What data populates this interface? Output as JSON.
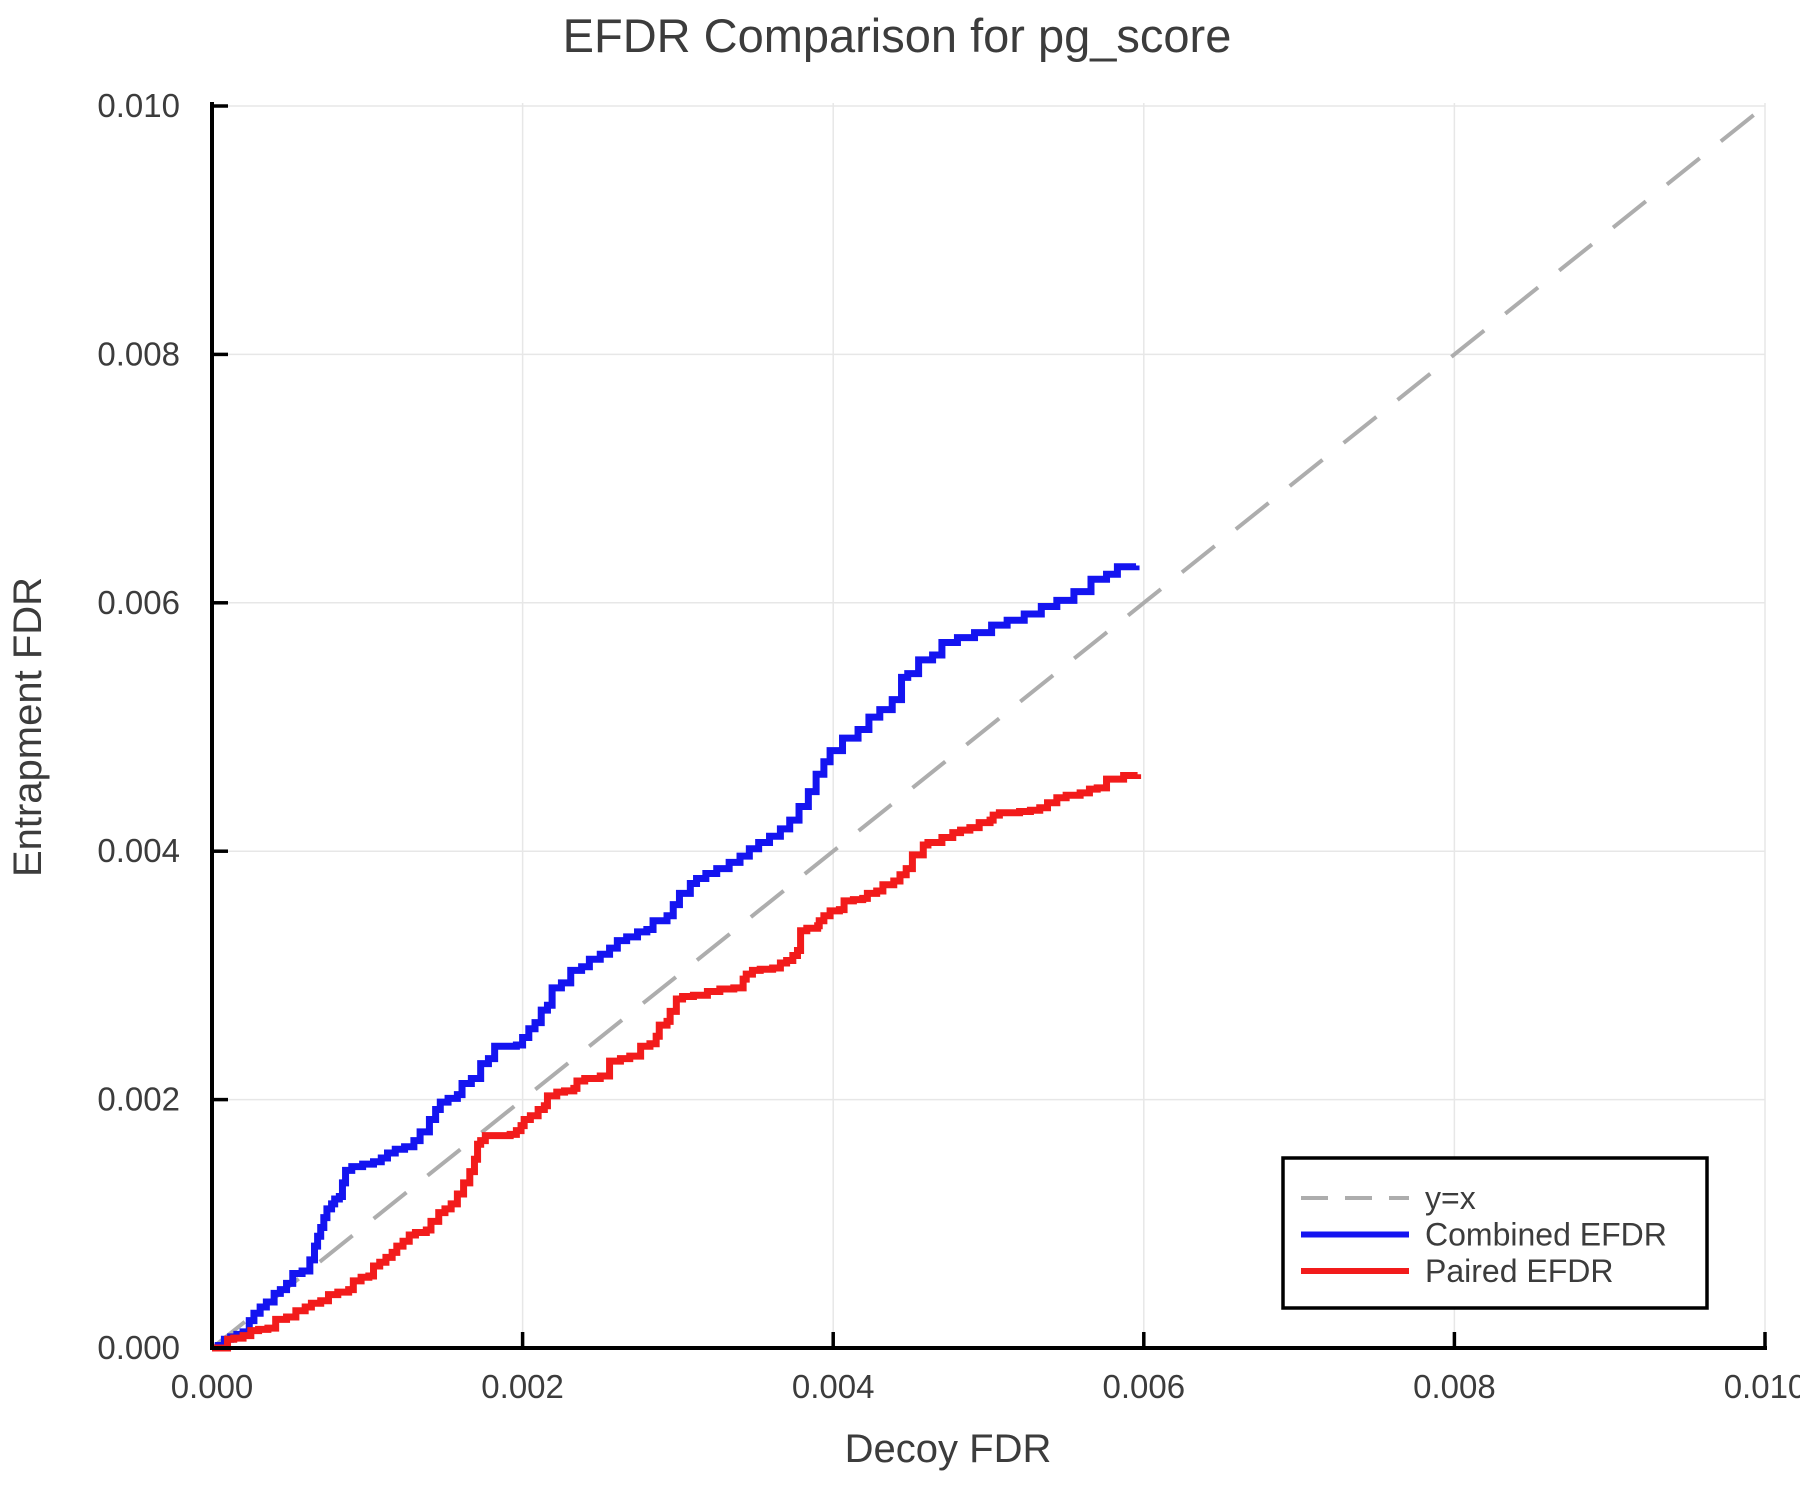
{
  "chart_data": {
    "type": "line",
    "title": "EFDR Comparison for pg_score",
    "xlabel": "Decoy FDR",
    "ylabel": "Entrapment FDR",
    "xlim": [
      0.0,
      0.01
    ],
    "ylim": [
      0.0,
      0.01
    ],
    "x_tick_labels": [
      "0.000",
      "0.002",
      "0.004",
      "0.006",
      "0.008",
      "0.010"
    ],
    "y_tick_labels": [
      "0.000",
      "0.002",
      "0.004",
      "0.006",
      "0.008",
      "0.010"
    ],
    "grid": true,
    "grid_color": "#e7e7e7",
    "spine_color": "#000000",
    "text_color": "#3c3c3c",
    "legend_position": "lower right",
    "reference_line": {
      "label": "y=x",
      "style": "dashed",
      "color": "#adadad",
      "from": [
        0.0,
        0.0
      ],
      "to": [
        0.01,
        0.01
      ]
    },
    "series": [
      {
        "name": "Combined EFDR",
        "color": "#1414f0",
        "step": true,
        "points": [
          [
            0.0,
            0.0
          ],
          [
            4e-05,
            2e-05
          ],
          [
            8e-05,
            7e-05
          ],
          [
            0.00012,
            9e-05
          ],
          [
            0.00016,
            0.00011
          ],
          [
            0.0002,
            0.00013
          ],
          [
            0.00024,
            0.00022
          ],
          [
            0.00027,
            0.00028
          ],
          [
            0.00031,
            0.00033
          ],
          [
            0.00035,
            0.00037
          ],
          [
            0.0004,
            0.00044
          ],
          [
            0.00044,
            0.00047
          ],
          [
            0.00048,
            0.00052
          ],
          [
            0.00052,
            0.0006
          ],
          [
            0.00058,
            0.00062
          ],
          [
            0.00063,
            0.00071
          ],
          [
            0.00066,
            0.00082
          ],
          [
            0.00068,
            0.0009
          ],
          [
            0.0007,
            0.00097
          ],
          [
            0.00072,
            0.00105
          ],
          [
            0.00074,
            0.00112
          ],
          [
            0.00077,
            0.00116
          ],
          [
            0.00079,
            0.0012
          ],
          [
            0.00082,
            0.00122
          ],
          [
            0.00084,
            0.00133
          ],
          [
            0.00086,
            0.00143
          ],
          [
            0.0009,
            0.00146
          ],
          [
            0.00097,
            0.00148
          ],
          [
            0.00104,
            0.0015
          ],
          [
            0.00109,
            0.00153
          ],
          [
            0.00113,
            0.00157
          ],
          [
            0.00118,
            0.0016
          ],
          [
            0.00124,
            0.00162
          ],
          [
            0.0013,
            0.00167
          ],
          [
            0.00134,
            0.00174
          ],
          [
            0.0014,
            0.00184
          ],
          [
            0.00144,
            0.00192
          ],
          [
            0.00147,
            0.00198
          ],
          [
            0.00152,
            0.00201
          ],
          [
            0.00158,
            0.00204
          ],
          [
            0.00161,
            0.00213
          ],
          [
            0.00167,
            0.00217
          ],
          [
            0.00173,
            0.00229
          ],
          [
            0.00178,
            0.00233
          ],
          [
            0.00182,
            0.00243
          ],
          [
            0.00196,
            0.00244
          ],
          [
            0.002,
            0.0025
          ],
          [
            0.00204,
            0.00257
          ],
          [
            0.00208,
            0.00262
          ],
          [
            0.00212,
            0.00272
          ],
          [
            0.00216,
            0.00276
          ],
          [
            0.00219,
            0.0029
          ],
          [
            0.00225,
            0.00294
          ],
          [
            0.00231,
            0.00304
          ],
          [
            0.00238,
            0.00307
          ],
          [
            0.00243,
            0.00313
          ],
          [
            0.0025,
            0.00317
          ],
          [
            0.00256,
            0.00322
          ],
          [
            0.00261,
            0.00328
          ],
          [
            0.00267,
            0.00331
          ],
          [
            0.00274,
            0.00335
          ],
          [
            0.0028,
            0.00337
          ],
          [
            0.00284,
            0.00344
          ],
          [
            0.00293,
            0.00348
          ],
          [
            0.00297,
            0.00357
          ],
          [
            0.00301,
            0.00366
          ],
          [
            0.00308,
            0.00374
          ],
          [
            0.00312,
            0.00378
          ],
          [
            0.00318,
            0.00382
          ],
          [
            0.00325,
            0.00386
          ],
          [
            0.00333,
            0.00391
          ],
          [
            0.0034,
            0.00396
          ],
          [
            0.00346,
            0.00402
          ],
          [
            0.00352,
            0.00407
          ],
          [
            0.00359,
            0.00412
          ],
          [
            0.00366,
            0.00418
          ],
          [
            0.00372,
            0.00425
          ],
          [
            0.00378,
            0.00436
          ],
          [
            0.00384,
            0.00448
          ],
          [
            0.00389,
            0.00462
          ],
          [
            0.00394,
            0.00472
          ],
          [
            0.00398,
            0.00481
          ],
          [
            0.00406,
            0.00491
          ],
          [
            0.00416,
            0.00498
          ],
          [
            0.00423,
            0.00508
          ],
          [
            0.0043,
            0.00514
          ],
          [
            0.00438,
            0.00522
          ],
          [
            0.00444,
            0.0054
          ],
          [
            0.00448,
            0.00543
          ],
          [
            0.00455,
            0.00554
          ],
          [
            0.00464,
            0.00558
          ],
          [
            0.0047,
            0.00568
          ],
          [
            0.0048,
            0.00572
          ],
          [
            0.00491,
            0.00576
          ],
          [
            0.00502,
            0.00582
          ],
          [
            0.00512,
            0.00586
          ],
          [
            0.00523,
            0.00591
          ],
          [
            0.00534,
            0.00597
          ],
          [
            0.00544,
            0.00602
          ],
          [
            0.00555,
            0.00609
          ],
          [
            0.00566,
            0.00619
          ],
          [
            0.00576,
            0.00623
          ],
          [
            0.00583,
            0.00629
          ],
          [
            0.00595,
            0.0063
          ]
        ]
      },
      {
        "name": "Paired EFDR",
        "color": "#f21b1b",
        "step": true,
        "points": [
          [
            0.0,
            0.0
          ],
          [
            6e-05,
            0.0
          ],
          [
            0.0001,
            7e-05
          ],
          [
            0.00014,
            8e-05
          ],
          [
            0.0002,
            0.0001
          ],
          [
            0.00025,
            0.00014
          ],
          [
            0.0003,
            0.00015
          ],
          [
            0.00036,
            0.00016
          ],
          [
            0.00041,
            0.00023
          ],
          [
            0.00048,
            0.00025
          ],
          [
            0.00054,
            0.0003
          ],
          [
            0.0006,
            0.00033
          ],
          [
            0.00064,
            0.00036
          ],
          [
            0.0007,
            0.00038
          ],
          [
            0.00075,
            0.00043
          ],
          [
            0.00081,
            0.00045
          ],
          [
            0.00088,
            0.00047
          ],
          [
            0.00091,
            0.00054
          ],
          [
            0.00096,
            0.00057
          ],
          [
            0.00101,
            0.00058
          ],
          [
            0.00104,
            0.00066
          ],
          [
            0.00108,
            0.00069
          ],
          [
            0.00112,
            0.00073
          ],
          [
            0.00116,
            0.00077
          ],
          [
            0.00119,
            0.00082
          ],
          [
            0.00123,
            0.00086
          ],
          [
            0.00127,
            0.00091
          ],
          [
            0.00131,
            0.00093
          ],
          [
            0.00138,
            0.00095
          ],
          [
            0.00141,
            0.00102
          ],
          [
            0.00146,
            0.00109
          ],
          [
            0.0015,
            0.00112
          ],
          [
            0.00154,
            0.00116
          ],
          [
            0.00158,
            0.00124
          ],
          [
            0.00162,
            0.00133
          ],
          [
            0.00166,
            0.00142
          ],
          [
            0.00169,
            0.00152
          ],
          [
            0.00171,
            0.00164
          ],
          [
            0.00173,
            0.00167
          ],
          [
            0.00176,
            0.00171
          ],
          [
            0.00192,
            0.00172
          ],
          [
            0.00196,
            0.00175
          ],
          [
            0.00199,
            0.00179
          ],
          [
            0.00201,
            0.00184
          ],
          [
            0.00205,
            0.00187
          ],
          [
            0.0021,
            0.00192
          ],
          [
            0.00214,
            0.00195
          ],
          [
            0.00216,
            0.00203
          ],
          [
            0.00222,
            0.00206
          ],
          [
            0.00227,
            0.00207
          ],
          [
            0.00233,
            0.00209
          ],
          [
            0.00235,
            0.00215
          ],
          [
            0.0024,
            0.00217
          ],
          [
            0.0025,
            0.00219
          ],
          [
            0.00256,
            0.00231
          ],
          [
            0.00263,
            0.00233
          ],
          [
            0.00269,
            0.00235
          ],
          [
            0.00276,
            0.00243
          ],
          [
            0.00282,
            0.00245
          ],
          [
            0.00286,
            0.00251
          ],
          [
            0.00288,
            0.0026
          ],
          [
            0.00293,
            0.00263
          ],
          [
            0.00295,
            0.00271
          ],
          [
            0.00299,
            0.00281
          ],
          [
            0.00303,
            0.00283
          ],
          [
            0.0031,
            0.00284
          ],
          [
            0.00319,
            0.00287
          ],
          [
            0.00327,
            0.00289
          ],
          [
            0.00336,
            0.0029
          ],
          [
            0.00342,
            0.00297
          ],
          [
            0.00344,
            0.00301
          ],
          [
            0.00348,
            0.00304
          ],
          [
            0.00353,
            0.00305
          ],
          [
            0.00361,
            0.00306
          ],
          [
            0.00366,
            0.0031
          ],
          [
            0.0037,
            0.00312
          ],
          [
            0.00374,
            0.00316
          ],
          [
            0.00377,
            0.0032
          ],
          [
            0.00379,
            0.00336
          ],
          [
            0.00383,
            0.00338
          ],
          [
            0.0039,
            0.0034
          ],
          [
            0.00391,
            0.00344
          ],
          [
            0.00394,
            0.00348
          ],
          [
            0.00398,
            0.00352
          ],
          [
            0.00404,
            0.00353
          ],
          [
            0.00407,
            0.0036
          ],
          [
            0.00413,
            0.00361
          ],
          [
            0.00419,
            0.00362
          ],
          [
            0.00422,
            0.00366
          ],
          [
            0.00428,
            0.00368
          ],
          [
            0.00432,
            0.00373
          ],
          [
            0.00439,
            0.00376
          ],
          [
            0.00443,
            0.00381
          ],
          [
            0.00447,
            0.00386
          ],
          [
            0.00451,
            0.00397
          ],
          [
            0.00458,
            0.00405
          ],
          [
            0.00461,
            0.00407
          ],
          [
            0.0047,
            0.00411
          ],
          [
            0.00477,
            0.00415
          ],
          [
            0.00482,
            0.00417
          ],
          [
            0.00488,
            0.00419
          ],
          [
            0.00494,
            0.00423
          ],
          [
            0.00501,
            0.00425
          ],
          [
            0.00503,
            0.00429
          ],
          [
            0.00507,
            0.00431
          ],
          [
            0.0052,
            0.00432
          ],
          [
            0.00527,
            0.00433
          ],
          [
            0.00533,
            0.00435
          ],
          [
            0.00538,
            0.00439
          ],
          [
            0.00544,
            0.00443
          ],
          [
            0.0055,
            0.00445
          ],
          [
            0.00559,
            0.00447
          ],
          [
            0.00565,
            0.0045
          ],
          [
            0.0057,
            0.00451
          ],
          [
            0.00576,
            0.00458
          ],
          [
            0.00587,
            0.00461
          ],
          [
            0.00596,
            0.00462
          ]
        ]
      }
    ]
  }
}
